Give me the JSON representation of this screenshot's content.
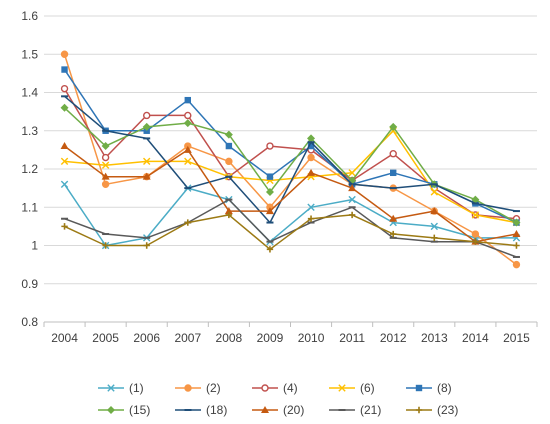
{
  "chart_data": {
    "type": "line",
    "title": "",
    "xlabel": "",
    "ylabel": "",
    "x": [
      2004,
      2005,
      2006,
      2007,
      2008,
      2009,
      2010,
      2011,
      2012,
      2013,
      2014,
      2015
    ],
    "x_tick_labels": [
      "2004",
      "2005",
      "2006",
      "2007",
      "2008",
      "2009",
      "2010",
      "2011",
      "2012",
      "2013",
      "2014",
      "2015"
    ],
    "ylim": [
      0.8,
      1.6
    ],
    "y_ticks": [
      0.8,
      0.9,
      1.0,
      1.1,
      1.2,
      1.3,
      1.4,
      1.5,
      1.6
    ],
    "y_tick_labels": [
      "0.8",
      "0.9",
      "1",
      "1.1",
      "1.2",
      "1.3",
      "1.4",
      "1.5",
      "1.6"
    ],
    "grid": "horizontal",
    "legend_position": "bottom",
    "series": [
      {
        "name": "(1)",
        "color": "#4bacc6",
        "marker": "x",
        "values": [
          1.16,
          1.0,
          1.02,
          1.15,
          1.12,
          1.01,
          1.1,
          1.12,
          1.06,
          1.05,
          1.02,
          1.02
        ]
      },
      {
        "name": "(2)",
        "color": "#f79646",
        "marker": "circle",
        "values": [
          1.5,
          1.16,
          1.18,
          1.26,
          1.22,
          1.1,
          1.23,
          1.16,
          1.15,
          1.09,
          1.03,
          0.95
        ]
      },
      {
        "name": "(4)",
        "color": "#c0504d",
        "marker": "circle-open",
        "values": [
          1.41,
          1.23,
          1.34,
          1.34,
          1.18,
          1.26,
          1.25,
          1.17,
          1.24,
          1.15,
          1.08,
          1.07
        ]
      },
      {
        "name": "(6)",
        "color": "#ffc000",
        "marker": "x",
        "values": [
          1.22,
          1.21,
          1.22,
          1.22,
          1.18,
          1.17,
          1.18,
          1.19,
          1.3,
          1.14,
          1.08,
          1.06
        ]
      },
      {
        "name": "(8)",
        "color": "#2e75b6",
        "marker": "square",
        "values": [
          1.46,
          1.3,
          1.3,
          1.38,
          1.26,
          1.18,
          1.26,
          1.16,
          1.19,
          1.16,
          1.11,
          1.06
        ]
      },
      {
        "name": "(15)",
        "color": "#70ad47",
        "marker": "diamond",
        "values": [
          1.36,
          1.26,
          1.31,
          1.32,
          1.29,
          1.14,
          1.28,
          1.17,
          1.31,
          1.16,
          1.12,
          1.06
        ]
      },
      {
        "name": "(18)",
        "color": "#1f4e79",
        "marker": "dash",
        "values": [
          1.39,
          1.3,
          1.28,
          1.15,
          1.18,
          1.06,
          1.27,
          1.16,
          1.15,
          1.16,
          1.11,
          1.09
        ]
      },
      {
        "name": "(20)",
        "color": "#c55a11",
        "marker": "triangle",
        "values": [
          1.26,
          1.18,
          1.18,
          1.25,
          1.09,
          1.09,
          1.19,
          1.15,
          1.07,
          1.09,
          1.01,
          1.03
        ]
      },
      {
        "name": "(21)",
        "color": "#595959",
        "marker": "dash",
        "values": [
          1.07,
          1.03,
          1.02,
          1.06,
          1.12,
          1.01,
          1.06,
          1.1,
          1.02,
          1.01,
          1.01,
          0.97
        ]
      },
      {
        "name": "(23)",
        "color": "#9c7a14",
        "marker": "plus",
        "values": [
          1.05,
          1.0,
          1.0,
          1.06,
          1.08,
          0.99,
          1.07,
          1.08,
          1.03,
          1.02,
          1.01,
          1.0
        ]
      }
    ]
  }
}
